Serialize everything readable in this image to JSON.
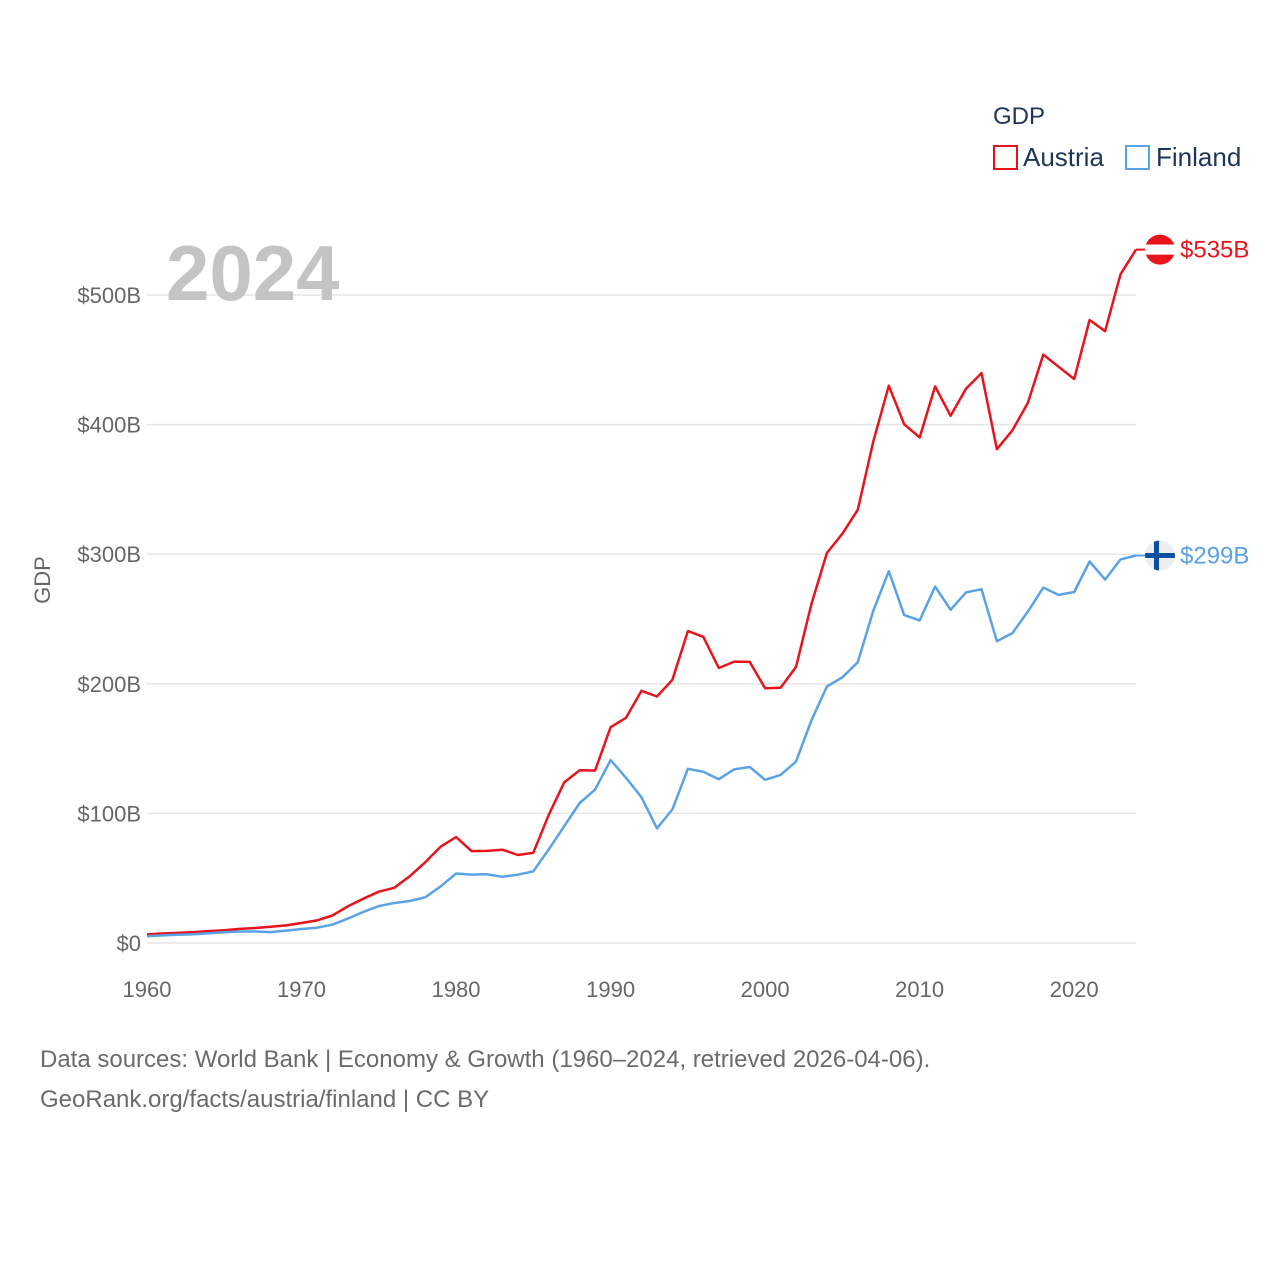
{
  "chart_data": {
    "type": "line",
    "year_label": "2024",
    "ylabel": "GDP",
    "xlabel": "",
    "legend_title": "GDP",
    "xlim": [
      1960,
      2024
    ],
    "ylim": [
      0,
      560
    ],
    "y_ticks": [
      0,
      100,
      200,
      300,
      400,
      500
    ],
    "y_tick_labels": [
      "$0",
      "$100B",
      "$200B",
      "$300B",
      "$400B",
      "$500B"
    ],
    "x_ticks": [
      1960,
      1970,
      1980,
      1990,
      2000,
      2010,
      2020
    ],
    "x_tick_labels": [
      "1960",
      "1970",
      "1980",
      "1990",
      "2000",
      "2010",
      "2020"
    ],
    "x": [
      1960,
      1961,
      1962,
      1963,
      1964,
      1965,
      1966,
      1967,
      1968,
      1969,
      1970,
      1971,
      1972,
      1973,
      1974,
      1975,
      1976,
      1977,
      1978,
      1979,
      1980,
      1981,
      1982,
      1983,
      1984,
      1985,
      1986,
      1987,
      1988,
      1989,
      1990,
      1991,
      1992,
      1993,
      1994,
      1995,
      1996,
      1997,
      1998,
      1999,
      2000,
      2001,
      2002,
      2003,
      2004,
      2005,
      2006,
      2007,
      2008,
      2009,
      2010,
      2011,
      2012,
      2013,
      2014,
      2015,
      2016,
      2017,
      2018,
      2019,
      2020,
      2021,
      2022,
      2023,
      2024
    ],
    "series": [
      {
        "name": "Austria",
        "color": "#e8141c",
        "end_label": "$535B",
        "values": [
          6.6,
          7.3,
          7.8,
          8.4,
          9.2,
          9.9,
          10.9,
          11.6,
          12.6,
          13.6,
          15.4,
          17.4,
          21.2,
          28.3,
          34.2,
          39.6,
          42.6,
          51.5,
          62.3,
          74.3,
          81.8,
          70.9,
          71.1,
          72.0,
          67.9,
          69.6,
          99.0,
          123.9,
          133.3,
          133.1,
          166.5,
          173.8,
          194.6,
          190.2,
          203.1,
          240.7,
          236.3,
          212.2,
          217.1,
          216.9,
          196.5,
          197.0,
          213.0,
          261.7,
          300.9,
          315.8,
          334.3,
          387.0,
          430.0,
          400.2,
          390.1,
          429.5,
          406.8,
          427.6,
          439.7,
          381.0,
          395.6,
          416.7,
          454.0,
          444.6,
          435.2,
          480.7,
          472.1,
          516.0,
          535.0
        ]
      },
      {
        "name": "Finland",
        "color": "#5aa2e6",
        "end_label": "$299B",
        "values": [
          5.2,
          5.9,
          6.3,
          6.8,
          7.6,
          8.3,
          8.9,
          8.9,
          8.4,
          9.6,
          10.8,
          11.8,
          14.1,
          18.8,
          24.0,
          28.5,
          30.9,
          32.4,
          35.3,
          43.7,
          53.6,
          52.8,
          53.0,
          51.1,
          52.7,
          55.3,
          72.2,
          90.1,
          108.0,
          118.4,
          141.1,
          127.5,
          112.4,
          88.4,
          103.1,
          134.4,
          132.1,
          126.4,
          134.0,
          135.8,
          125.9,
          129.7,
          140.0,
          171.9,
          197.9,
          205.0,
          216.7,
          256.4,
          286.9,
          253.0,
          248.9,
          275.0,
          257.1,
          270.5,
          273.0,
          232.9,
          239.1,
          255.6,
          274.2,
          268.6,
          270.8,
          294.4,
          280.4,
          296.0,
          299.0
        ]
      }
    ]
  },
  "flags": {
    "austria": "austria-flag",
    "finland": "finland-flag"
  },
  "footer": {
    "line1": "Data sources: World Bank | Economy & Growth (1960–2024, retrieved 2026-04-06).",
    "line2": "GeoRank.org/facts/austria/finland | CC BY"
  }
}
